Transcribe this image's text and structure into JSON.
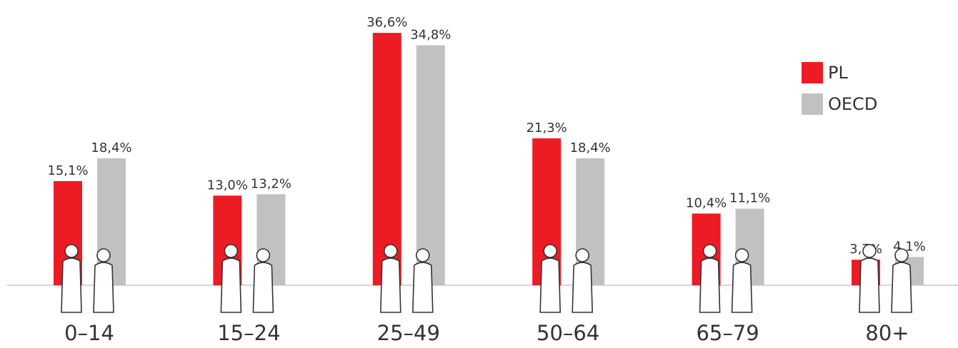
{
  "chart_data": {
    "type": "bar",
    "categories": [
      "0–14",
      "15–24",
      "25–49",
      "50–64",
      "65–79",
      "80+"
    ],
    "series": [
      {
        "name": "PL",
        "color": "#ed1c24",
        "values": [
          15.1,
          13.0,
          36.6,
          21.3,
          10.4,
          3.7
        ],
        "value_labels": [
          "15,1%",
          "13,0%",
          "36,6%",
          "21,3%",
          "10,4%",
          "3,7%"
        ]
      },
      {
        "name": "OECD",
        "color": "#c1c1c3",
        "values": [
          18.4,
          13.2,
          34.8,
          18.4,
          11.1,
          4.1
        ],
        "value_labels": [
          "18,4%",
          "13,2%",
          "34,8%",
          "18,4%",
          "11,1%",
          "4,1%"
        ]
      }
    ],
    "legend": "top-right"
  }
}
